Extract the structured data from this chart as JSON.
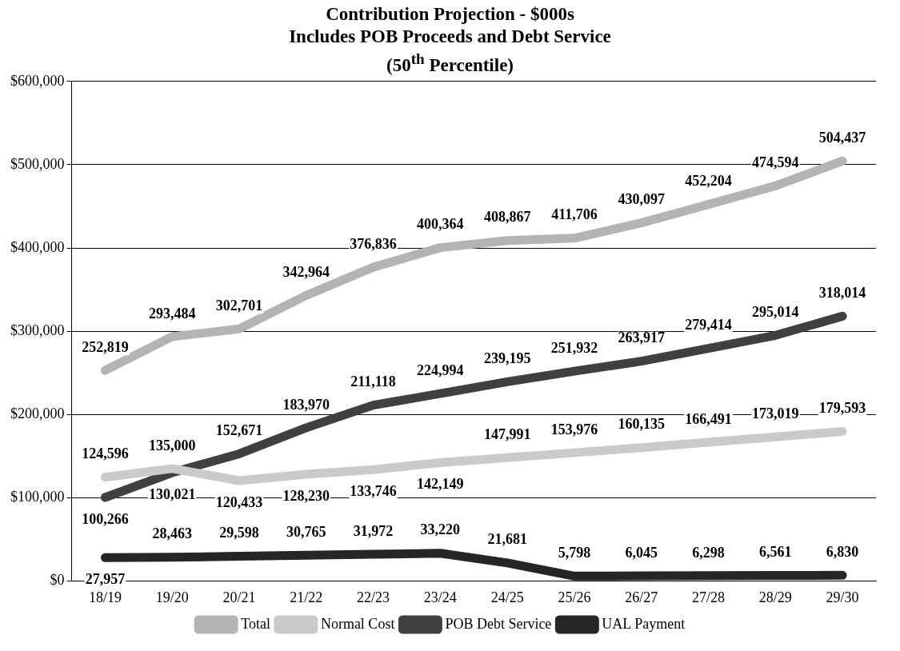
{
  "chart_data": {
    "type": "line",
    "title": "Contribution Projection - $000s\nIncludes POB Proceeds and Debt Service\n(50$^{th}$ Percentile)",
    "categories": [
      "18/19",
      "19/20",
      "20/21",
      "21/22",
      "22/23",
      "23/24",
      "24/25",
      "25/26",
      "26/27",
      "27/28",
      "28/29",
      "29/30"
    ],
    "series": [
      {
        "name": "Total",
        "color": "#b4b4b4",
        "values": [
          252819,
          293484,
          302701,
          342964,
          376836,
          400364,
          408867,
          411706,
          430097,
          452204,
          474594,
          504437
        ],
        "value_labels": [
          "252,819",
          "293,484",
          "302,701",
          "342,964",
          "376,836",
          "400,364",
          "408,867",
          "411,706",
          "430,097",
          "452,204",
          "474,594",
          "504,437"
        ]
      },
      {
        "name": "Normal Cost",
        "color": "#cacaca",
        "values": [
          124596,
          135000,
          120433,
          128230,
          133746,
          142149,
          147991,
          153976,
          160135,
          166491,
          173019,
          179593
        ],
        "value_labels": [
          "124,596",
          "135,000",
          "120,433",
          "128,230",
          "133,746",
          "142,149",
          "147,991",
          "153,976",
          "160,135",
          "166,491",
          "173,019",
          "179,593"
        ]
      },
      {
        "name": "POB Debt Service",
        "color": "#404040",
        "values": [
          100266,
          130021,
          152671,
          183970,
          211118,
          224994,
          239195,
          251932,
          263917,
          279414,
          295014,
          318014
        ],
        "value_labels": [
          "100,266",
          "130,021",
          "152,671",
          "183,970",
          "211,118",
          "224,994",
          "239,195",
          "251,932",
          "263,917",
          "279,414",
          "295,014",
          "318,014"
        ]
      },
      {
        "name": "UAL Payment",
        "color": "#262626",
        "values": [
          27957,
          28463,
          29598,
          30765,
          31972,
          33220,
          21681,
          5798,
          6045,
          6298,
          6561,
          6830
        ],
        "value_labels": [
          "27,957",
          "28,463",
          "29,598",
          "30,765",
          "31,972",
          "33,220",
          "21,681",
          "5,798",
          "6,045",
          "6,298",
          "6,561",
          "6,830"
        ]
      }
    ],
    "ylim": [
      0,
      600000
    ],
    "yticks": [
      {
        "value": 0,
        "label": "$0"
      },
      {
        "value": 100000,
        "label": "$100,000"
      },
      {
        "value": 200000,
        "label": "$200,000"
      },
      {
        "value": 300000,
        "label": "$300,000"
      },
      {
        "value": 400000,
        "label": "$400,000"
      },
      {
        "value": 500000,
        "label": "$500,000"
      },
      {
        "value": 600000,
        "label": "$600,000"
      }
    ],
    "grid": "y",
    "legend": "bottom",
    "marker": "none",
    "line_style": "solid",
    "data_labels": true
  }
}
